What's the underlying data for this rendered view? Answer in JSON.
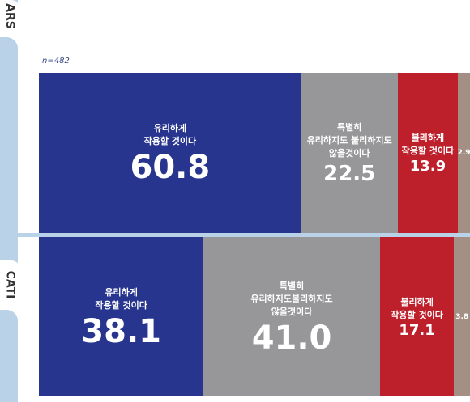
{
  "colors": {
    "favorable": "#27358f",
    "neutral": "#97979a",
    "unfavorable": "#bd1f2b",
    "other": "#a38f83"
  },
  "n_label": "n=482",
  "chart_data": {
    "type": "bar",
    "stacked": true,
    "orientation": "horizontal",
    "xlim": [
      0,
      100
    ],
    "groups": [
      {
        "name": "ARS",
        "segments": [
          {
            "label": "유리하게\n작용할 것이다",
            "value": 60.8,
            "display": "60.8",
            "color": "favorable"
          },
          {
            "label": "특별히\n유리하지도 불리하지도\n않을것이다",
            "value": 22.5,
            "display": "22.5",
            "color": "neutral"
          },
          {
            "label": "불리하게\n작용할 것이다",
            "value": 13.9,
            "display": "13.9",
            "color": "unfavorable"
          },
          {
            "label": "",
            "value": 2.9,
            "display": "2.9",
            "color": "other"
          }
        ]
      },
      {
        "name": "CATI",
        "segments": [
          {
            "label": "유리하게\n작용할 것이다",
            "value": 38.1,
            "display": "38.1",
            "color": "favorable"
          },
          {
            "label": "특별히\n유리하지도불리하지도\n않을것이다",
            "value": 41.0,
            "display": "41.0",
            "color": "neutral"
          },
          {
            "label": "불리하게\n작용할 것이다",
            "value": 17.1,
            "display": "17.1",
            "color": "unfavorable"
          },
          {
            "label": "",
            "value": 3.8,
            "display": "3.8",
            "color": "other"
          }
        ]
      }
    ]
  }
}
